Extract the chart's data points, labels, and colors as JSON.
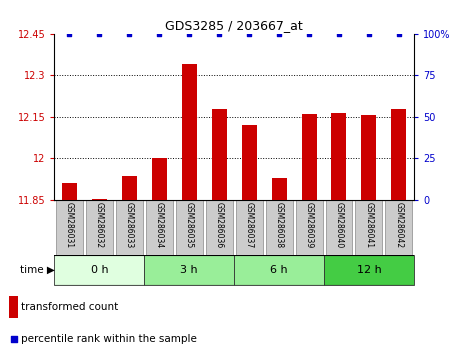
{
  "title": "GDS3285 / 203667_at",
  "samples": [
    "GSM286031",
    "GSM286032",
    "GSM286033",
    "GSM286034",
    "GSM286035",
    "GSM286036",
    "GSM286037",
    "GSM286038",
    "GSM286039",
    "GSM286040",
    "GSM286041",
    "GSM286042"
  ],
  "bar_values": [
    11.91,
    11.855,
    11.935,
    12.0,
    12.34,
    12.18,
    12.12,
    11.93,
    12.16,
    12.165,
    12.155,
    12.18
  ],
  "percentile_values": [
    100,
    100,
    100,
    100,
    100,
    100,
    100,
    100,
    100,
    100,
    100,
    100
  ],
  "bar_color": "#cc0000",
  "percentile_color": "#0000cc",
  "ylim_left": [
    11.85,
    12.45
  ],
  "ylim_right": [
    0,
    100
  ],
  "yticks_left": [
    11.85,
    12.0,
    12.15,
    12.3,
    12.45
  ],
  "ytick_labels_left": [
    "11.85",
    "12",
    "12.15",
    "12.3",
    "12.45"
  ],
  "yticks_right": [
    0,
    25,
    50,
    75,
    100
  ],
  "ytick_labels_right": [
    "0",
    "25",
    "50",
    "75",
    "100%"
  ],
  "groups": [
    {
      "label": "0 h",
      "start": 0,
      "end": 3,
      "color": "#e0ffe0"
    },
    {
      "label": "3 h",
      "start": 3,
      "end": 6,
      "color": "#99ee99"
    },
    {
      "label": "6 h",
      "start": 6,
      "end": 9,
      "color": "#99ee99"
    },
    {
      "label": "12 h",
      "start": 9,
      "end": 12,
      "color": "#44cc44"
    }
  ],
  "legend_bar_label": "transformed count",
  "legend_pct_label": "percentile rank within the sample",
  "background_color": "#ffffff",
  "tick_label_color_left": "#cc0000",
  "tick_label_color_right": "#0000cc",
  "sample_box_color": "#cccccc",
  "sample_box_edge": "#888888"
}
